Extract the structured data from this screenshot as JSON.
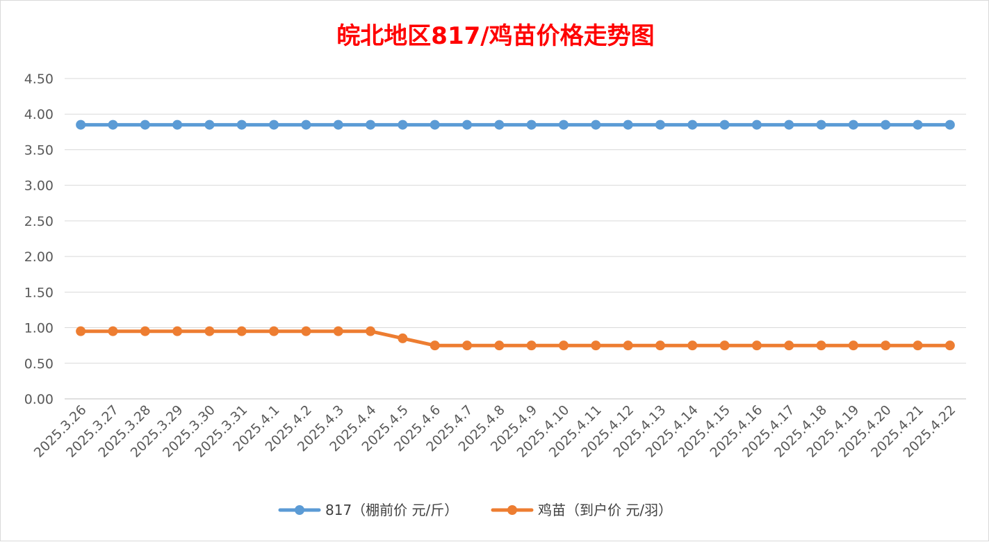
{
  "chart_data": {
    "type": "line",
    "title": "皖北地区817/鸡苗价格走势图",
    "title_color": "#ff0000",
    "categories": [
      "2025.3.26",
      "2025.3.27",
      "2025.3.28",
      "2025.3.29",
      "2025.3.30",
      "2025.3.31",
      "2025.4.1",
      "2025.4.2",
      "2025.4.3",
      "2025.4.4",
      "2025.4.5",
      "2025.4.6",
      "2025.4.7",
      "2025.4.8",
      "2025.4.9",
      "2025.4.10",
      "2025.4.11",
      "2025.4.12",
      "2025.4.13",
      "2025.4.14",
      "2025.4.15",
      "2025.4.16",
      "2025.4.17",
      "2025.4.18",
      "2025.4.19",
      "2025.4.20",
      "2025.4.21",
      "2025.4.22"
    ],
    "series": [
      {
        "name": "817（棚前价 元/斤）",
        "color": "#5b9bd5",
        "values": [
          3.85,
          3.85,
          3.85,
          3.85,
          3.85,
          3.85,
          3.85,
          3.85,
          3.85,
          3.85,
          3.85,
          3.85,
          3.85,
          3.85,
          3.85,
          3.85,
          3.85,
          3.85,
          3.85,
          3.85,
          3.85,
          3.85,
          3.85,
          3.85,
          3.85,
          3.85,
          3.85,
          3.85
        ]
      },
      {
        "name": "鸡苗（到户价 元/羽）",
        "color": "#ed7d31",
        "values": [
          0.95,
          0.95,
          0.95,
          0.95,
          0.95,
          0.95,
          0.95,
          0.95,
          0.95,
          0.95,
          0.85,
          0.75,
          0.75,
          0.75,
          0.75,
          0.75,
          0.75,
          0.75,
          0.75,
          0.75,
          0.75,
          0.75,
          0.75,
          0.75,
          0.75,
          0.75,
          0.75,
          0.75
        ]
      }
    ],
    "ylim": [
      0,
      4.5
    ],
    "yticks": [
      "0.00",
      "0.50",
      "1.00",
      "1.50",
      "2.00",
      "2.50",
      "3.00",
      "3.50",
      "4.00",
      "4.50"
    ],
    "grid": true,
    "legend_position": "bottom"
  }
}
